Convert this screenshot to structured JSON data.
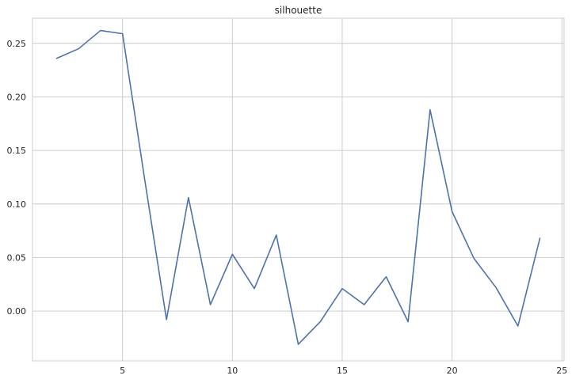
{
  "chart_data": {
    "type": "line",
    "title": "silhouette",
    "xlabel": "",
    "ylabel": "",
    "xlim": [
      0.9,
      25.1
    ],
    "ylim": [
      -0.0465,
      0.2735
    ],
    "xticks": [
      5,
      10,
      15,
      20,
      25
    ],
    "yticks": [
      0.0,
      0.05,
      0.1,
      0.15,
      0.2,
      0.25
    ],
    "xtick_labels": [
      "5",
      "10",
      "15",
      "20",
      "25"
    ],
    "ytick_labels": [
      "0.00",
      "0.05",
      "0.10",
      "0.15",
      "0.20",
      "0.25"
    ],
    "grid": true,
    "legend": "none",
    "series": [
      {
        "color": "#4c72b0",
        "x": [
          2,
          3,
          4,
          5,
          6,
          7,
          8,
          9,
          10,
          11,
          12,
          13,
          14,
          15,
          16,
          17,
          18,
          19,
          20,
          21,
          22,
          23,
          24
        ],
        "y": [
          0.236,
          0.245,
          0.262,
          0.259,
          0.124,
          -0.008,
          0.106,
          0.006,
          0.053,
          0.021,
          0.071,
          -0.031,
          -0.01,
          0.021,
          0.006,
          0.032,
          -0.01,
          0.188,
          0.093,
          0.049,
          0.022,
          -0.014,
          0.068
        ]
      }
    ],
    "style": {
      "grid_color": "#cccccc",
      "spine_color": "#cccccc",
      "text_color": "#262626",
      "background": "#ffffff"
    }
  }
}
